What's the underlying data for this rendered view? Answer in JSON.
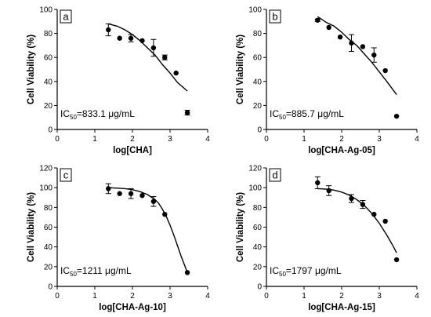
{
  "chart_data": [
    {
      "type": "scatter",
      "panel_label": "a",
      "xlabel": "log[CHA]",
      "ylabel": "Cell Viability (%)",
      "xlim": [
        0,
        4
      ],
      "ylim": [
        0,
        100
      ],
      "xticks": [
        0,
        1,
        2,
        3,
        4
      ],
      "yticks": [
        0,
        20,
        40,
        60,
        80,
        100
      ],
      "annotation": {
        "prefix": "IC",
        "sub": "50",
        "suffix": "=833.1 μg/mL"
      },
      "points": [
        {
          "x": 1.36,
          "y": 83,
          "err": 5
        },
        {
          "x": 1.66,
          "y": 76,
          "err": 0
        },
        {
          "x": 1.96,
          "y": 76,
          "err": 3
        },
        {
          "x": 2.26,
          "y": 74,
          "err": 0
        },
        {
          "x": 2.56,
          "y": 68,
          "err": 7
        },
        {
          "x": 2.86,
          "y": 60,
          "err": 2
        },
        {
          "x": 3.16,
          "y": 47,
          "err": 0
        },
        {
          "x": 3.46,
          "y": 14,
          "err": 2
        }
      ],
      "fit": {
        "x": [
          1.36,
          1.6,
          1.8,
          2.0,
          2.2,
          2.4,
          2.6,
          2.8,
          3.0,
          3.2,
          3.46
        ],
        "y": [
          88,
          86,
          83,
          79,
          74,
          68,
          62,
          54,
          47,
          39,
          32
        ]
      }
    },
    {
      "type": "scatter",
      "panel_label": "b",
      "xlabel": "log[CHA-Ag-05]",
      "ylabel": "Cell Viability (%)",
      "xlim": [
        0,
        4
      ],
      "ylim": [
        0,
        100
      ],
      "xticks": [
        0,
        1,
        2,
        3,
        4
      ],
      "yticks": [
        0,
        20,
        40,
        60,
        80,
        100
      ],
      "annotation": {
        "prefix": "IC",
        "sub": "50",
        "suffix": "=885.7 μg/mL"
      },
      "points": [
        {
          "x": 1.36,
          "y": 91,
          "err": 1
        },
        {
          "x": 1.66,
          "y": 85,
          "err": 0
        },
        {
          "x": 1.96,
          "y": 77,
          "err": 0
        },
        {
          "x": 2.26,
          "y": 72,
          "err": 7
        },
        {
          "x": 2.56,
          "y": 69,
          "err": 0
        },
        {
          "x": 2.86,
          "y": 62,
          "err": 6
        },
        {
          "x": 3.16,
          "y": 49,
          "err": 0
        },
        {
          "x": 3.46,
          "y": 11,
          "err": 0
        }
      ],
      "fit": {
        "x": [
          1.36,
          1.6,
          1.8,
          2.0,
          2.2,
          2.4,
          2.6,
          2.8,
          3.0,
          3.2,
          3.46
        ],
        "y": [
          94,
          89,
          86,
          81,
          75,
          70,
          63,
          56,
          48,
          40,
          29
        ]
      }
    },
    {
      "type": "scatter",
      "panel_label": "c",
      "xlabel": "log[CHA-Ag-10]",
      "ylabel": "Cell Viability (%)",
      "xlim": [
        0,
        4
      ],
      "ylim": [
        0,
        120
      ],
      "xticks": [
        0,
        1,
        2,
        3,
        4
      ],
      "yticks": [
        0,
        20,
        40,
        60,
        80,
        100,
        120
      ],
      "annotation": {
        "prefix": "IC",
        "sub": "50",
        "suffix": "=1211 μg/mL"
      },
      "points": [
        {
          "x": 1.36,
          "y": 99,
          "err": 5
        },
        {
          "x": 1.66,
          "y": 94,
          "err": 0
        },
        {
          "x": 1.96,
          "y": 94,
          "err": 5
        },
        {
          "x": 2.26,
          "y": 92,
          "err": 0
        },
        {
          "x": 2.56,
          "y": 86,
          "err": 5
        },
        {
          "x": 2.86,
          "y": 73,
          "err": 0
        },
        {
          "x": 3.46,
          "y": 14,
          "err": 0
        }
      ],
      "fit": {
        "x": [
          1.36,
          1.6,
          1.8,
          2.0,
          2.2,
          2.4,
          2.6,
          2.7,
          2.8,
          2.9,
          3.0,
          3.1,
          3.2,
          3.3,
          3.4,
          3.46
        ],
        "y": [
          100,
          99.5,
          99,
          98,
          96,
          93,
          88,
          84,
          78,
          71,
          62,
          52,
          41,
          30,
          20,
          14
        ]
      }
    },
    {
      "type": "scatter",
      "panel_label": "d",
      "xlabel": "log[CHA-Ag-15]",
      "ylabel": "Cell Viability (%)",
      "xlim": [
        0,
        4
      ],
      "ylim": [
        0,
        120
      ],
      "xticks": [
        0,
        1,
        2,
        3,
        4
      ],
      "yticks": [
        0,
        20,
        40,
        60,
        80,
        100,
        120
      ],
      "annotation": {
        "prefix": "IC",
        "sub": "50",
        "suffix": "=1797  μg/mL"
      },
      "points": [
        {
          "x": 1.36,
          "y": 105,
          "err": 6
        },
        {
          "x": 1.66,
          "y": 97,
          "err": 5
        },
        {
          "x": 2.26,
          "y": 89,
          "err": 4
        },
        {
          "x": 2.56,
          "y": 83,
          "err": 4
        },
        {
          "x": 2.86,
          "y": 73,
          "err": 0
        },
        {
          "x": 3.16,
          "y": 66,
          "err": 0
        },
        {
          "x": 3.46,
          "y": 27,
          "err": 0
        }
      ],
      "fit": {
        "x": [
          1.36,
          1.6,
          1.8,
          2.0,
          2.2,
          2.4,
          2.6,
          2.8,
          3.0,
          3.2,
          3.35,
          3.46
        ],
        "y": [
          99,
          98.5,
          97.5,
          95.5,
          92.5,
          88,
          82,
          74,
          64,
          52,
          42,
          34
        ]
      }
    }
  ]
}
